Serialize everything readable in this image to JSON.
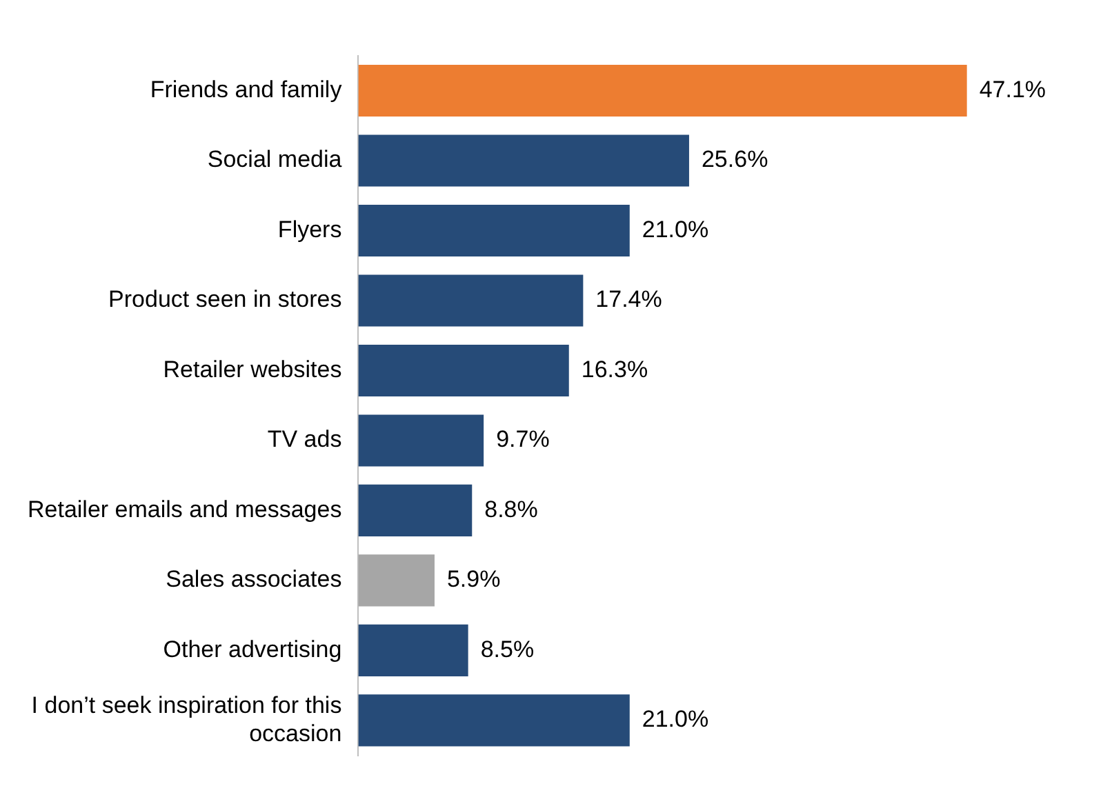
{
  "chart_data": {
    "type": "bar",
    "orientation": "horizontal",
    "categories": [
      "Friends and family",
      "Social media",
      "Flyers",
      "Product seen in stores",
      "Retailer websites",
      "TV ads",
      "Retailer emails and messages",
      "Sales associates",
      "Other advertising",
      "I don’t seek inspiration for this occasion"
    ],
    "values": [
      47.1,
      25.6,
      21.0,
      17.4,
      16.3,
      9.7,
      8.8,
      5.9,
      8.5,
      21.0
    ],
    "value_labels": [
      "47.1%",
      "25.6%",
      "21.0%",
      "17.4%",
      "16.3%",
      "9.7%",
      "8.8%",
      "5.9%",
      "8.5%",
      "21.0%"
    ],
    "colors": [
      "#ed7d31",
      "#264b78",
      "#264b78",
      "#264b78",
      "#264b78",
      "#264b78",
      "#264b78",
      "#a6a6a6",
      "#264b78",
      "#264b78"
    ],
    "grid": false,
    "legend": false
  }
}
